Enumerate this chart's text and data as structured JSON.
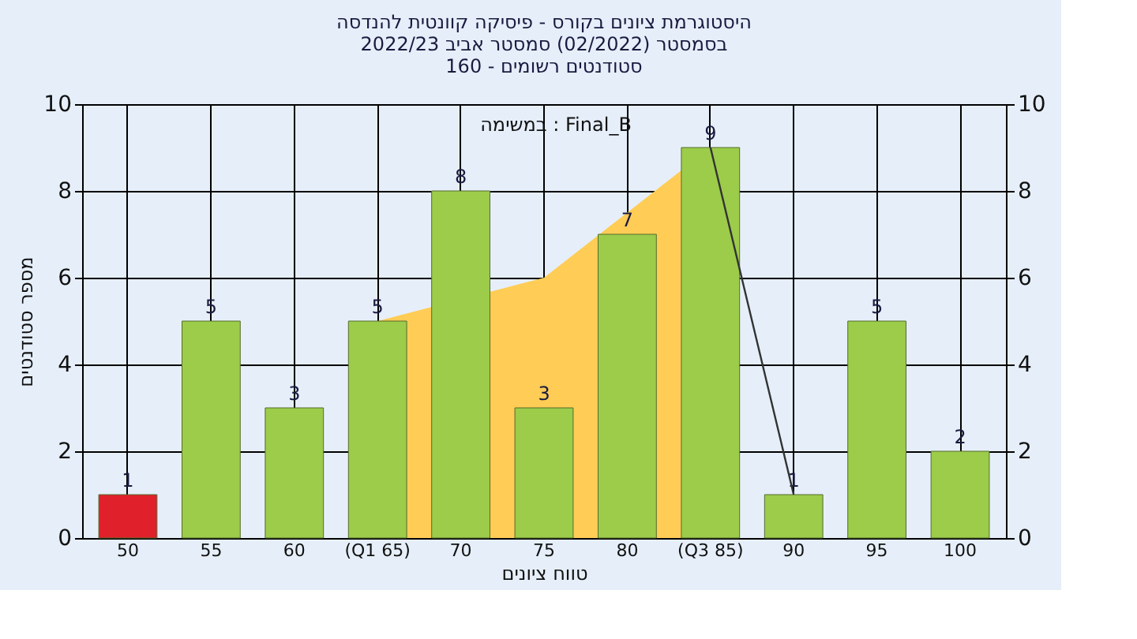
{
  "chart_data": {
    "type": "bar",
    "title": [
      "היסטוגרמת ציונים בקורס - פיסיקה קוונטית להנדסה",
      "בסמסטר (02/2022) סמסטר אביב 2022/23",
      "סטודנטים רשומים - 160"
    ],
    "xlabel": "טווח ציונים",
    "ylabel": "מספר סטודנטים",
    "annotations": [
      "במשימה : Final_B"
    ],
    "categories": [
      "50",
      "55",
      "60",
      "(Q1 65)",
      "70",
      "75",
      "80",
      "(Q3 85)",
      "90",
      "95",
      "100"
    ],
    "series": [
      {
        "type": "area",
        "color": "#ffcc55",
        "values": [
          null,
          null,
          null,
          5,
          null,
          6,
          null,
          9,
          null,
          null,
          null
        ]
      },
      {
        "values": [
          1,
          5,
          3,
          5,
          8,
          3,
          7,
          9,
          1,
          5,
          2
        ],
        "value_labels": [
          "1",
          "5",
          "3",
          "5",
          "8",
          "3",
          "7",
          "9",
          "1",
          "5",
          "2"
        ],
        "colors": [
          "#e0202a",
          "#9ccc4a",
          "#9ccc4a",
          "#9ccc4a",
          "#9ccc4a",
          "#9ccc4a",
          "#9ccc4a",
          "#9ccc4a",
          "#9ccc4a",
          "#9ccc4a",
          "#9ccc4a"
        ]
      },
      {
        "type": "line",
        "color": "#333333",
        "values": [
          null,
          null,
          null,
          null,
          null,
          null,
          null,
          9,
          1,
          null,
          null
        ]
      }
    ],
    "ylim": [
      0,
      10
    ],
    "yticks": [
      0,
      2,
      4,
      6,
      8,
      10
    ],
    "y2lim": [
      0,
      10
    ],
    "y2ticks": [
      0,
      2,
      4,
      6,
      8,
      10
    ],
    "grid": true
  }
}
